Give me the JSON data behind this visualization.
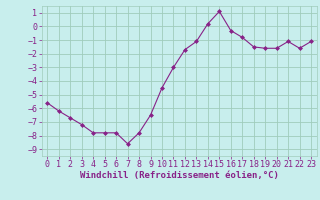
{
  "x": [
    0,
    1,
    2,
    3,
    4,
    5,
    6,
    7,
    8,
    9,
    10,
    11,
    12,
    13,
    14,
    15,
    16,
    17,
    18,
    19,
    20,
    21,
    22,
    23
  ],
  "y": [
    -5.6,
    -6.2,
    -6.7,
    -7.2,
    -7.8,
    -7.8,
    -7.8,
    -8.6,
    -7.8,
    -6.5,
    -4.5,
    -3.0,
    -1.7,
    -1.1,
    0.2,
    1.1,
    -0.3,
    -0.8,
    -1.5,
    -1.6,
    -1.6,
    -1.1,
    -1.6,
    -1.1
  ],
  "line_color": "#882288",
  "marker": "D",
  "marker_size": 2.0,
  "background_color": "#c8eeed",
  "grid_color": "#a0ccbb",
  "xlabel": "Windchill (Refroidissement éolien,°C)",
  "xlabel_fontsize": 6.5,
  "xlim": [
    -0.5,
    23.5
  ],
  "ylim": [
    -9.5,
    1.5
  ],
  "yticks": [
    1,
    0,
    -1,
    -2,
    -3,
    -4,
    -5,
    -6,
    -7,
    -8,
    -9
  ],
  "xticks": [
    0,
    1,
    2,
    3,
    4,
    5,
    6,
    7,
    8,
    9,
    10,
    11,
    12,
    13,
    14,
    15,
    16,
    17,
    18,
    19,
    20,
    21,
    22,
    23
  ],
  "tick_fontsize": 6,
  "label_color": "#882288"
}
